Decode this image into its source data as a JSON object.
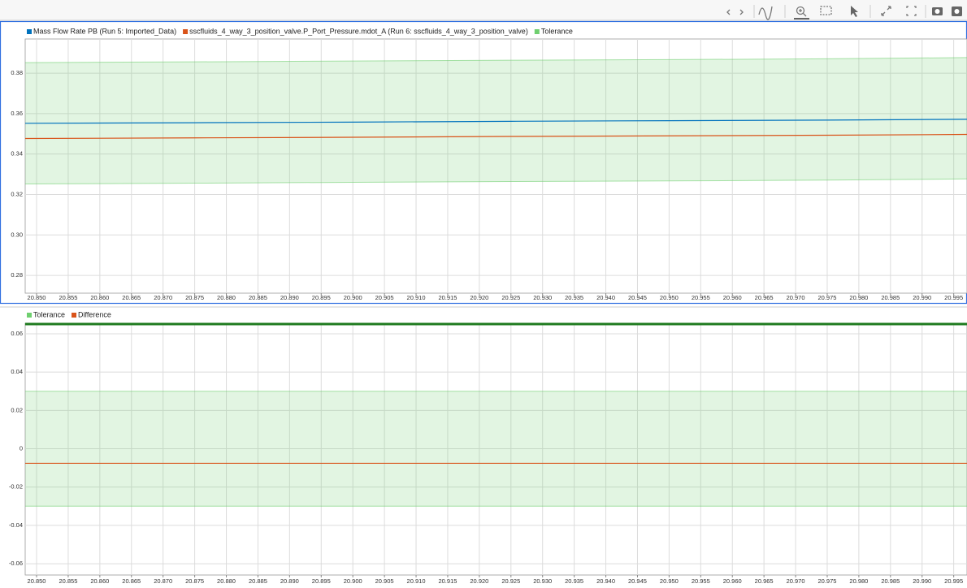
{
  "chart_data": [
    {
      "type": "line",
      "x": [
        20.8482,
        20.875,
        20.9,
        20.925,
        20.95,
        20.975,
        20.9971
      ],
      "series": [
        {
          "name": "Mass Flow Rate PB (Run 5: Imported_Data)",
          "color": "#0072bd",
          "values": [
            0.3552,
            0.3555,
            0.3558,
            0.3562,
            0.3565,
            0.3568,
            0.3572
          ]
        },
        {
          "name": "sscfluids_4_way_3_position_valve.P_Port_Pressure.mdot_A (Run 6: sscfluids_4_way_3_position_valve)",
          "color": "#d95319",
          "values": [
            0.3477,
            0.348,
            0.3483,
            0.3487,
            0.349,
            0.3493,
            0.3497
          ]
        },
        {
          "name": "Tolerance",
          "color": "#6fcf6f",
          "lower": [
            0.3252,
            0.3256,
            0.326,
            0.3264,
            0.3267,
            0.3271,
            0.3277
          ],
          "upper": [
            0.3852,
            0.3856,
            0.386,
            0.3864,
            0.3867,
            0.3871,
            0.3877
          ]
        }
      ],
      "xlim": [
        20.8482,
        20.9971
      ],
      "ylim": [
        0.2712,
        0.3969
      ],
      "yticks": [
        0.28,
        {
          "value": 0.3,
          "label": "0.30"
        },
        0.32,
        0.34,
        0.36,
        0.38
      ],
      "xticks": [
        {
          "value": 20.85,
          "label": "20.850"
        },
        {
          "value": 20.855,
          "label": "20.855"
        },
        {
          "value": 20.86,
          "label": "20.860"
        },
        {
          "value": 20.865,
          "label": "20.865"
        },
        {
          "value": 20.87,
          "label": "20.870"
        },
        {
          "value": 20.875,
          "label": "20.875"
        },
        {
          "value": 20.88,
          "label": "20.880"
        },
        {
          "value": 20.885,
          "label": "20.885"
        },
        {
          "value": 20.89,
          "label": "20.890"
        },
        {
          "value": 20.895,
          "label": "20.895"
        },
        {
          "value": 20.9,
          "label": "20.900"
        },
        {
          "value": 20.905,
          "label": "20.905"
        },
        {
          "value": 20.91,
          "label": "20.910"
        },
        {
          "value": 20.915,
          "label": "20.915"
        },
        {
          "value": 20.92,
          "label": "20.920"
        },
        {
          "value": 20.925,
          "label": "20.925"
        },
        {
          "value": 20.93,
          "label": "20.930"
        },
        {
          "value": 20.935,
          "label": "20.935"
        },
        {
          "value": 20.94,
          "label": "20.940"
        },
        {
          "value": 20.945,
          "label": "20.945"
        },
        {
          "value": 20.95,
          "label": "20.950"
        },
        {
          "value": 20.955,
          "label": "20.955"
        },
        {
          "value": 20.96,
          "label": "20.960"
        },
        {
          "value": 20.965,
          "label": "20.965"
        },
        {
          "value": 20.97,
          "label": "20.970"
        },
        {
          "value": 20.975,
          "label": "20.975"
        },
        {
          "value": 20.98,
          "label": "20.980"
        },
        {
          "value": 20.985,
          "label": "20.985"
        },
        {
          "value": 20.99,
          "label": "20.990"
        },
        {
          "value": 20.995,
          "label": "20.995"
        }
      ],
      "grid": true
    },
    {
      "type": "line",
      "x": [
        20.8482,
        20.9971
      ],
      "series": [
        {
          "name": "Tolerance",
          "color": "#6fcf6f",
          "lower": [
            -0.03,
            -0.03
          ],
          "upper": [
            0.03,
            0.03
          ]
        },
        {
          "name": "Difference",
          "color": "#d95319",
          "values": [
            -0.0076,
            -0.0076
          ]
        }
      ],
      "xlim": [
        20.8482,
        20.9971
      ],
      "ylim": [
        -0.0659,
        0.0655
      ],
      "yticks": [
        -0.06,
        -0.04,
        -0.02,
        0,
        0.02,
        0.04,
        0.06
      ],
      "xticks": [
        {
          "value": 20.85,
          "label": "20.850"
        },
        {
          "value": 20.855,
          "label": "20.855"
        },
        {
          "value": 20.86,
          "label": "20.860"
        },
        {
          "value": 20.865,
          "label": "20.865"
        },
        {
          "value": 20.87,
          "label": "20.870"
        },
        {
          "value": 20.875,
          "label": "20.875"
        },
        {
          "value": 20.88,
          "label": "20.880"
        },
        {
          "value": 20.885,
          "label": "20.885"
        },
        {
          "value": 20.89,
          "label": "20.890"
        },
        {
          "value": 20.895,
          "label": "20.895"
        },
        {
          "value": 20.9,
          "label": "20.900"
        },
        {
          "value": 20.905,
          "label": "20.905"
        },
        {
          "value": 20.91,
          "label": "20.910"
        },
        {
          "value": 20.915,
          "label": "20.915"
        },
        {
          "value": 20.92,
          "label": "20.920"
        },
        {
          "value": 20.925,
          "label": "20.925"
        },
        {
          "value": 20.93,
          "label": "20.930"
        },
        {
          "value": 20.935,
          "label": "20.935"
        },
        {
          "value": 20.94,
          "label": "20.940"
        },
        {
          "value": 20.945,
          "label": "20.945"
        },
        {
          "value": 20.95,
          "label": "20.950"
        },
        {
          "value": 20.955,
          "label": "20.955"
        },
        {
          "value": 20.96,
          "label": "20.960"
        },
        {
          "value": 20.965,
          "label": "20.965"
        },
        {
          "value": 20.97,
          "label": "20.970"
        },
        {
          "value": 20.975,
          "label": "20.975"
        },
        {
          "value": 20.98,
          "label": "20.980"
        },
        {
          "value": 20.985,
          "label": "20.985"
        },
        {
          "value": 20.99,
          "label": "20.990"
        },
        {
          "value": 20.995,
          "label": "20.995"
        }
      ],
      "grid": true
    }
  ]
}
